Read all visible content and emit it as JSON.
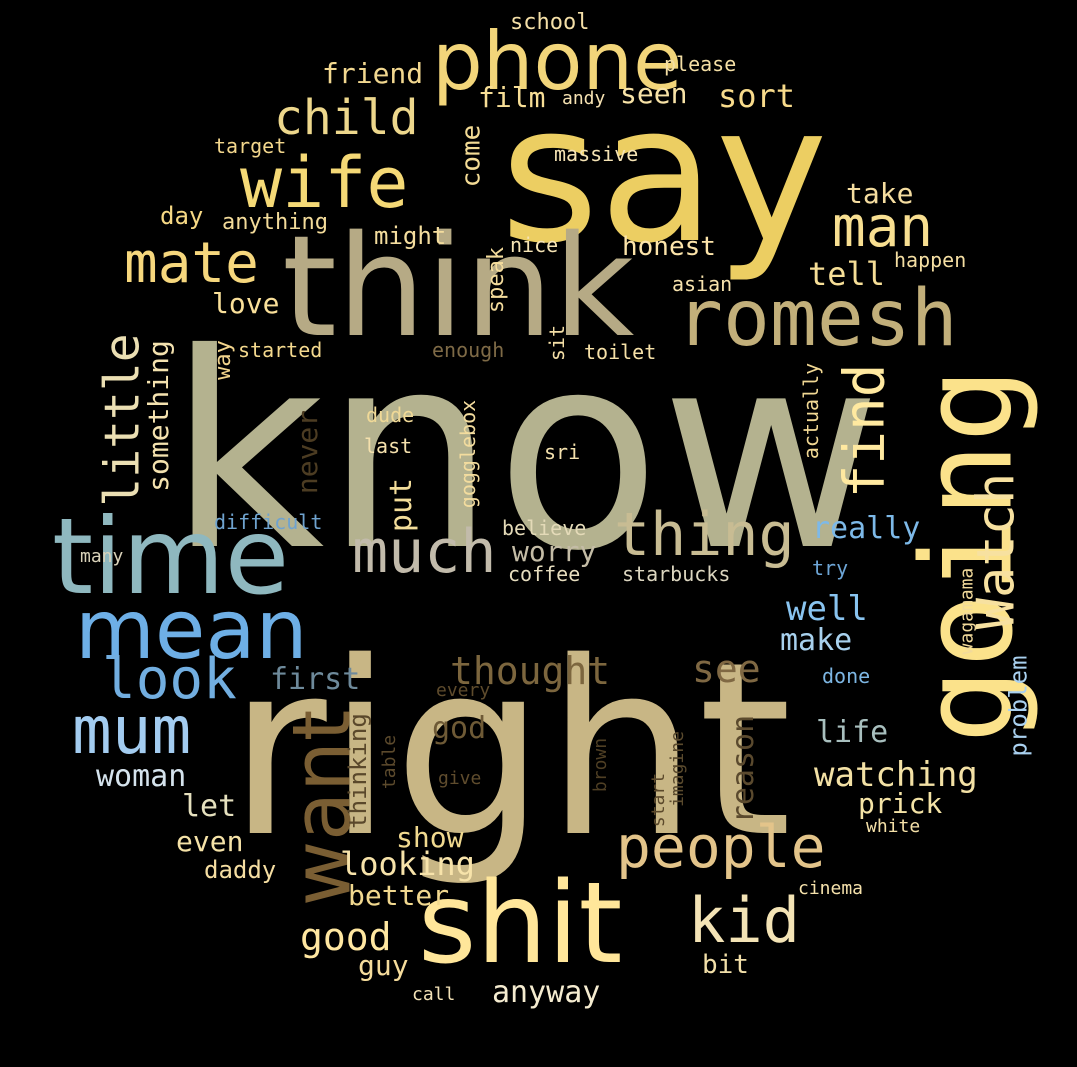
{
  "words": [
    {
      "text": "know",
      "color": "#B4B28F"
    },
    {
      "text": "right",
      "color": "#C8B685"
    },
    {
      "text": "say",
      "color": "#ECCE62"
    },
    {
      "text": "think",
      "color": "#B6AA85"
    },
    {
      "text": "time",
      "color": "#8FB8BF"
    },
    {
      "text": "going",
      "color": "#FBE28B"
    },
    {
      "text": "shit",
      "color": "#FFE69A"
    },
    {
      "text": "mean",
      "color": "#6EAFE6"
    },
    {
      "text": "phone",
      "color": "#F2D57A"
    },
    {
      "text": "romesh",
      "color": "#C2AF7A"
    },
    {
      "text": "want",
      "color": "#7A5E33"
    },
    {
      "text": "people",
      "color": "#E3C48A"
    },
    {
      "text": "thing",
      "color": "#C8BC93"
    },
    {
      "text": "wife",
      "color": "#F5D976"
    },
    {
      "text": "mum",
      "color": "#A3CCF0"
    },
    {
      "text": "much",
      "color": "#C2BBAB"
    },
    {
      "text": "kid",
      "color": "#F3E3B5"
    },
    {
      "text": "Watch",
      "color": "#F7E1A0"
    },
    {
      "text": "look",
      "color": "#72AEE0"
    },
    {
      "text": "find",
      "color": "#FFE9A0"
    },
    {
      "text": "mate",
      "color": "#F6D77D"
    },
    {
      "text": "child",
      "color": "#EDD78C"
    },
    {
      "text": "man",
      "color": "#F8DF91"
    },
    {
      "text": "little",
      "color": "#EBDFB3"
    },
    {
      "text": "thought",
      "color": "#7C663E"
    },
    {
      "text": "see",
      "color": "#7F6843"
    },
    {
      "text": "watching",
      "color": "#F3E1A5"
    },
    {
      "text": "looking",
      "color": "#F7E3AA"
    },
    {
      "text": "good",
      "color": "#FFE7A1"
    },
    {
      "text": "woman",
      "color": "#D5E3ED"
    },
    {
      "text": "anyway",
      "color": "#F5ECD0"
    },
    {
      "text": "sort",
      "color": "#F8DB8B"
    },
    {
      "text": "tell",
      "color": "#F6DE97"
    },
    {
      "text": "well",
      "color": "#89C4F0"
    },
    {
      "text": "make",
      "color": "#A8D1EE"
    },
    {
      "text": "first",
      "color": "#6E8A9B"
    },
    {
      "text": "worry",
      "color": "#C4BCA6"
    },
    {
      "text": "really",
      "color": "#7DB9E8"
    },
    {
      "text": "better",
      "color": "#F1D88F"
    },
    {
      "text": "show",
      "color": "#F0D98F"
    },
    {
      "text": "something",
      "color": "#F4E2AF"
    },
    {
      "text": "reason",
      "color": "#5B4A2E"
    },
    {
      "text": "never",
      "color": "#4C3C22"
    },
    {
      "text": "put",
      "color": "#F3DD9A"
    },
    {
      "text": "god",
      "color": "#6E5A36"
    },
    {
      "text": "life",
      "color": "#A8BFBE"
    },
    {
      "text": "prick",
      "color": "#F4E3A6"
    },
    {
      "text": "even",
      "color": "#F5E2A7"
    },
    {
      "text": "let",
      "color": "#E5E0BE"
    },
    {
      "text": "love",
      "color": "#FAE09A"
    },
    {
      "text": "honest",
      "color": "#FCE4AA"
    },
    {
      "text": "take",
      "color": "#F5DDA0"
    },
    {
      "text": "friend",
      "color": "#F2D890"
    },
    {
      "text": "film",
      "color": "#F7DE96"
    },
    {
      "text": "seen",
      "color": "#F8E3A7"
    },
    {
      "text": "come",
      "color": "#F3DB95"
    },
    {
      "text": "might",
      "color": "#F4DD9E"
    },
    {
      "text": "guy",
      "color": "#F5DC9C"
    },
    {
      "text": "bit",
      "color": "#F2DFA9"
    },
    {
      "text": "daddy",
      "color": "#F5DEA2"
    },
    {
      "text": "thinking",
      "color": "#5A482B"
    },
    {
      "text": "day",
      "color": "#F6D884"
    },
    {
      "text": "anything",
      "color": "#F3DB9A"
    },
    {
      "text": "problem",
      "color": "#A9D0EF"
    },
    {
      "text": "speak",
      "color": "#F3DB9C"
    },
    {
      "text": "started",
      "color": "#F4D98E"
    },
    {
      "text": "enough",
      "color": "#7E6A46"
    },
    {
      "text": "toilet",
      "color": "#F6E1A8"
    },
    {
      "text": "target",
      "color": "#F2D68C"
    },
    {
      "text": "school",
      "color": "#F4DFA7"
    },
    {
      "text": "please",
      "color": "#F4DFA5"
    },
    {
      "text": "andy",
      "color": "#F6E2B2"
    },
    {
      "text": "massive",
      "color": "#F5E3B4"
    },
    {
      "text": "nice",
      "color": "#F6E4B5"
    },
    {
      "text": "asian",
      "color": "#F7E3AE"
    },
    {
      "text": "happen",
      "color": "#F4DEA2"
    },
    {
      "text": "way",
      "color": "#F2D48C"
    },
    {
      "text": "sit",
      "color": "#F3DEA6"
    },
    {
      "text": "actually",
      "color": "#F1D894"
    },
    {
      "text": "dude",
      "color": "#F0D997"
    },
    {
      "text": "last",
      "color": "#F4E0AC"
    },
    {
      "text": "gogglebox",
      "color": "#F3DC9E"
    },
    {
      "text": "sri",
      "color": "#F4E1AD"
    },
    {
      "text": "difficult",
      "color": "#6FA3CF"
    },
    {
      "text": "many",
      "color": "#D9D2B9"
    },
    {
      "text": "believe",
      "color": "#E4DAB8"
    },
    {
      "text": "coffee",
      "color": "#E6DDBE"
    },
    {
      "text": "starbucks",
      "color": "#DCD6C0"
    },
    {
      "text": "try",
      "color": "#6DA5D6"
    },
    {
      "text": "wagamama",
      "color": "#F2DA9B"
    },
    {
      "text": "done",
      "color": "#7DB6E3"
    },
    {
      "text": "every",
      "color": "#5E4B2C"
    },
    {
      "text": "table",
      "color": "#5C4A2C"
    },
    {
      "text": "give",
      "color": "#5F4C2D"
    },
    {
      "text": "brown",
      "color": "#4F3F24"
    },
    {
      "text": "start",
      "color": "#5B492B"
    },
    {
      "text": "imagine",
      "color": "#5A4A2D"
    },
    {
      "text": "white",
      "color": "#F4E0A8"
    },
    {
      "text": "cinema",
      "color": "#F5E1AB"
    },
    {
      "text": "call",
      "color": "#F3E2B7"
    }
  ]
}
